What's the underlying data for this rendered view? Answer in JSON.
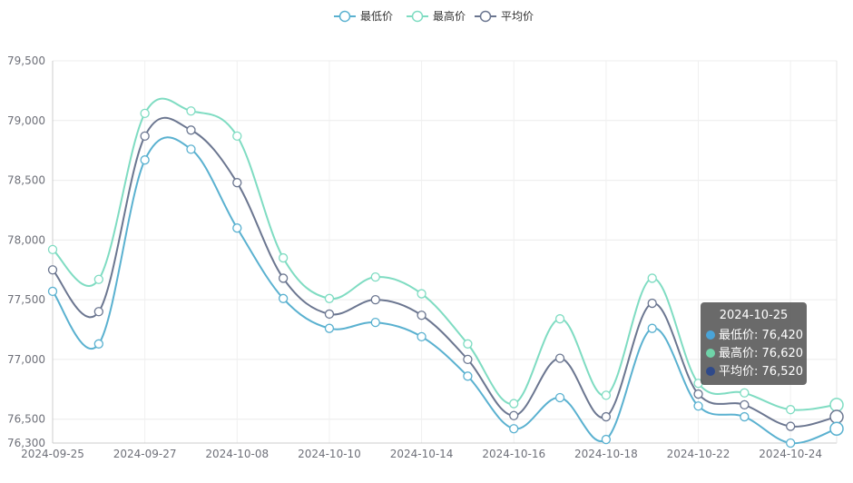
{
  "chart_data": {
    "type": "line",
    "title": "",
    "xlabel": "",
    "ylabel": "",
    "ylim": [
      76300,
      79500
    ],
    "yticks": [
      "76,300",
      "76,500",
      "77,000",
      "77,500",
      "78,000",
      "78,500",
      "79,000",
      "79,500"
    ],
    "ytick_values": [
      76300,
      76500,
      77000,
      77500,
      78000,
      78500,
      79000,
      79500
    ],
    "x_tick_labels": [
      "2024-09-25",
      "2024-09-27",
      "2024-10-08",
      "2024-10-10",
      "2024-10-14",
      "2024-10-16",
      "2024-10-18",
      "2024-10-22",
      "2024-10-24"
    ],
    "x_tick_positions": [
      0,
      2,
      4,
      6,
      8,
      10,
      12,
      14,
      16
    ],
    "x": [
      "2024-09-25",
      "2024-09-26",
      "2024-09-27",
      "2024-09-30",
      "2024-10-08",
      "2024-10-09",
      "2024-10-10",
      "2024-10-11",
      "2024-10-14",
      "2024-10-15",
      "2024-10-16",
      "2024-10-17",
      "2024-10-18",
      "2024-10-21",
      "2024-10-22",
      "2024-10-23",
      "2024-10-24",
      "2024-10-25"
    ],
    "grid": true,
    "legend_position": "top-center",
    "series": [
      {
        "name": "最低价",
        "color": "#5ab1d0",
        "values": [
          77570,
          77130,
          78670,
          78760,
          78100,
          77510,
          77260,
          77310,
          77190,
          76860,
          76420,
          76680,
          76330,
          77260,
          76610,
          76520,
          76300,
          76420
        ]
      },
      {
        "name": "最高价",
        "color": "#7fdcc2",
        "values": [
          77920,
          77670,
          79060,
          79080,
          78870,
          77850,
          77510,
          77690,
          77550,
          77130,
          76630,
          77340,
          76700,
          77680,
          76800,
          76720,
          76580,
          76620
        ]
      },
      {
        "name": "平均价",
        "color": "#6b7690",
        "values": [
          77750,
          77400,
          78870,
          78920,
          78480,
          77680,
          77380,
          77500,
          77370,
          77000,
          76530,
          77010,
          76520,
          77470,
          76710,
          76620,
          76440,
          76520
        ]
      }
    ]
  },
  "tooltip": {
    "date": "2024-10-25",
    "rows": [
      {
        "label": "最低价:",
        "value": "76,420",
        "color": "#4aa4d8"
      },
      {
        "label": "最高价:",
        "value": "76,620",
        "color": "#6fd3a8"
      },
      {
        "label": "平均价:",
        "value": "76,520",
        "color": "#2f4a8a"
      }
    ]
  }
}
